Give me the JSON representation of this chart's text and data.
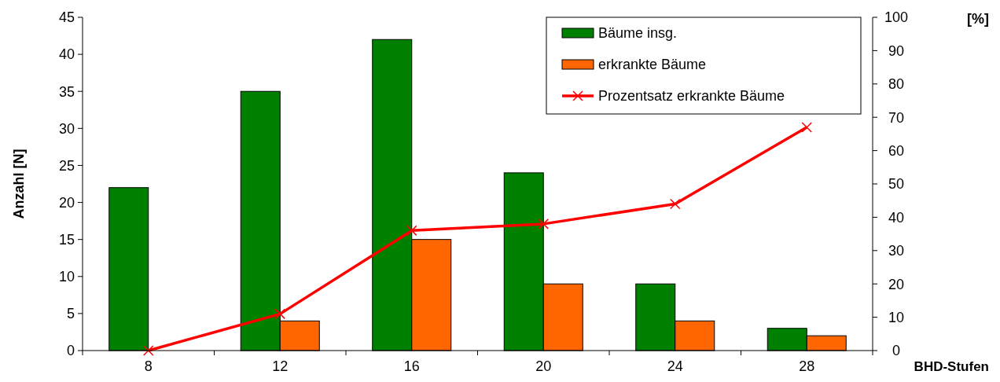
{
  "chart_data": {
    "type": "bar",
    "categories": [
      "8",
      "12",
      "16",
      "20",
      "24",
      "28"
    ],
    "xlabel": "BHD-Stufen",
    "ylabel": "Anzahl [N]",
    "y2label": "[%]",
    "ylim": [
      0,
      45
    ],
    "yticks": [
      0,
      5,
      10,
      15,
      20,
      25,
      30,
      35,
      40,
      45
    ],
    "y2lim": [
      0,
      100
    ],
    "y2ticks": [
      0,
      10,
      20,
      30,
      40,
      50,
      60,
      70,
      80,
      90,
      100
    ],
    "series": [
      {
        "name": "Bäume insg.",
        "color": "#008000",
        "values": [
          22,
          35,
          42,
          24,
          9,
          3
        ]
      },
      {
        "name": "erkrankte Bäume",
        "color": "#ff6600",
        "values": [
          0,
          4,
          15,
          9,
          4,
          2
        ]
      },
      {
        "name": "Prozentsatz erkrankte Bäume",
        "type": "line",
        "axis": "y2",
        "color": "#ff0000",
        "marker": "cross",
        "values": [
          0,
          11,
          36,
          38,
          44,
          67
        ]
      }
    ],
    "legend": "top right",
    "grid": false
  }
}
